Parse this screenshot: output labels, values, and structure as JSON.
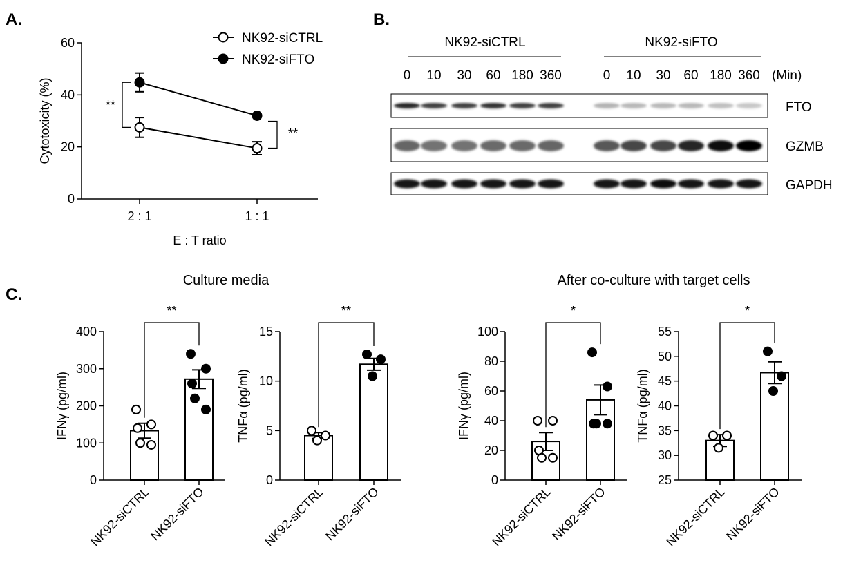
{
  "panels": {
    "a": "A.",
    "b": "B.",
    "c": "C."
  },
  "blot": {
    "group_labels": [
      "NK92-siCTRL",
      "NK92-siFTO"
    ],
    "time_points": [
      "0",
      "10",
      "30",
      "60",
      "180",
      "360"
    ],
    "time_unit": "(Min)",
    "rows": [
      "FTO",
      "GZMB",
      "GAPDH"
    ],
    "band_intensity": {
      "FTO": [
        0.85,
        0.75,
        0.75,
        0.8,
        0.75,
        0.75,
        0.3,
        0.28,
        0.28,
        0.28,
        0.25,
        0.22
      ],
      "GZMB": [
        0.6,
        0.55,
        0.55,
        0.58,
        0.58,
        0.6,
        0.65,
        0.72,
        0.72,
        0.85,
        0.95,
        1.0
      ],
      "GAPDH": [
        0.9,
        0.9,
        0.9,
        0.92,
        0.92,
        0.9,
        0.92,
        0.92,
        0.95,
        0.92,
        0.92,
        0.92
      ]
    }
  },
  "panel_c": {
    "titles": [
      "Culture media",
      "After co-culture with target cells"
    ]
  },
  "chart_data": [
    {
      "id": "A",
      "type": "line",
      "categories": [
        "2 : 1",
        "1 : 1"
      ],
      "xlabel": "E  : T ratio",
      "ylabel": "Cytotoxicity (%)",
      "ylim": [
        0,
        60
      ],
      "yticks": [
        0,
        20,
        40,
        60
      ],
      "legend_position": "top-right",
      "series": [
        {
          "name": "NK92-siCTRL",
          "marker": "open-circle",
          "values": [
            27.5,
            19.5
          ],
          "errors": [
            3.8,
            2.5
          ]
        },
        {
          "name": "NK92-siFTO",
          "marker": "filled-circle",
          "values": [
            44.8,
            32.0
          ],
          "errors": [
            3.6,
            0.8
          ]
        }
      ],
      "annotations": [
        {
          "text": "**",
          "compares": "2 : 1"
        },
        {
          "text": "**",
          "compares": "1 : 1"
        }
      ]
    },
    {
      "id": "C1",
      "type": "bar",
      "categories": [
        "NK92-siCTRL",
        "NK92-siFTO"
      ],
      "ylabel": "IFNγ (pg/ml)",
      "ylim": [
        0,
        400
      ],
      "yticks": [
        0,
        100,
        200,
        300,
        400
      ],
      "values": [
        133,
        272
      ],
      "errors": [
        20,
        25
      ],
      "points": [
        [
          190,
          150,
          140,
          100,
          95
        ],
        [
          340,
          300,
          260,
          220,
          190
        ]
      ],
      "significance": "**"
    },
    {
      "id": "C2",
      "type": "bar",
      "categories": [
        "NK92-siCTRL",
        "NK92-siFTO"
      ],
      "ylabel": "TNFα (pg/ml)",
      "ylim": [
        0,
        15
      ],
      "yticks": [
        0,
        5,
        10,
        15
      ],
      "values": [
        4.5,
        11.7
      ],
      "errors": [
        0.3,
        0.6
      ],
      "points": [
        [
          5.0,
          4.5,
          4.0
        ],
        [
          12.7,
          12.2,
          10.5
        ]
      ],
      "significance": "**"
    },
    {
      "id": "C3",
      "type": "bar",
      "categories": [
        "NK92-siCTRL",
        "NK92-siFTO"
      ],
      "ylabel": "IFNγ (pg/ml)",
      "ylim": [
        0,
        100
      ],
      "yticks": [
        0,
        20,
        40,
        60,
        80,
        100
      ],
      "values": [
        26,
        54
      ],
      "errors": [
        6,
        10
      ],
      "points": [
        [
          40,
          40,
          20,
          15,
          15
        ],
        [
          86,
          63,
          38,
          38,
          38
        ]
      ],
      "significance": "*"
    },
    {
      "id": "C4",
      "type": "bar",
      "categories": [
        "NK92-siCTRL",
        "NK92-siFTO"
      ],
      "ylabel": "TNFα (pg/ml)",
      "ylim": [
        25,
        55
      ],
      "yticks": [
        25,
        30,
        35,
        40,
        45,
        50,
        55
      ],
      "values": [
        33,
        46.7
      ],
      "errors": [
        1.2,
        2.2
      ],
      "points": [
        [
          34,
          34,
          31.5
        ],
        [
          51,
          46,
          43
        ]
      ],
      "significance": "*"
    }
  ]
}
